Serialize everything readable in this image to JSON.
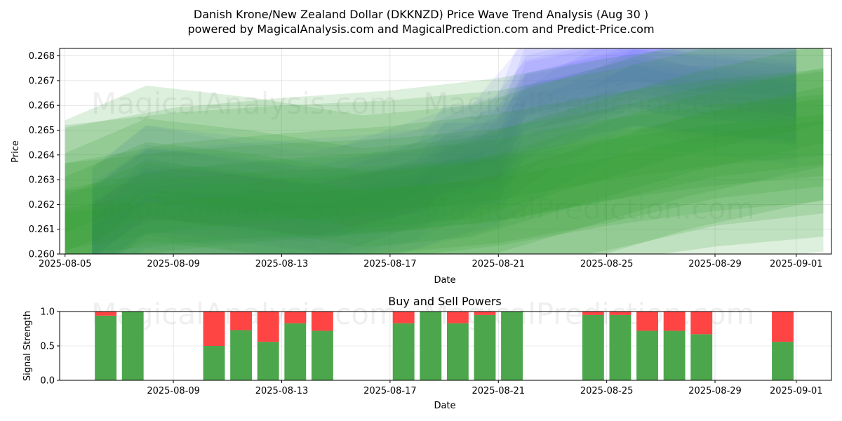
{
  "title_line1": "Danish Krone/New Zealand Dollar (DKKNZD) Price Wave Trend Analysis (Aug 30 )",
  "title_line2": "powered by MagicalAnalysis.com and MagicalPrediction.com and Predict-Price.com",
  "watermarks": [
    "MagicalAnalysis.com",
    "MagicalPrediction.com"
  ],
  "colors": {
    "blue": "#6666ff",
    "green": "#2e9e2e",
    "buy": "#4ca64c",
    "sell": "#ff4444"
  },
  "chart_data": [
    {
      "type": "area",
      "xlabel": "Date",
      "ylabel": "Price",
      "x_ticks": [
        "2025-08-05",
        "2025-08-09",
        "2025-08-13",
        "2025-08-17",
        "2025-08-21",
        "2025-08-25",
        "2025-08-29",
        "2025-09-01"
      ],
      "y_ticks": [
        "0.260",
        "0.261",
        "0.262",
        "0.263",
        "0.264",
        "0.265",
        "0.266",
        "0.267",
        "0.268"
      ],
      "xlim": [
        "2025-08-05",
        "2025-09-02"
      ],
      "ylim": [
        0.26,
        0.2683
      ],
      "grid": true,
      "series": [
        {
          "color": "blue",
          "x": [
            "2025-08-06",
            "2025-08-08",
            "2025-08-11",
            "2025-08-14",
            "2025-08-18",
            "2025-08-19",
            "2025-08-21",
            "2025-08-22",
            "2025-08-25",
            "2025-08-26",
            "2025-08-28",
            "2025-09-01"
          ],
          "values": [
            0.2607,
            0.2622,
            0.262,
            0.2615,
            0.2625,
            0.264,
            0.264,
            0.266,
            0.2668,
            0.2672,
            0.2668,
            0.2665
          ]
        },
        {
          "color": "blue",
          "x": [
            "2025-08-06",
            "2025-08-08",
            "2025-08-11",
            "2025-08-14",
            "2025-08-18",
            "2025-08-20",
            "2025-08-22",
            "2025-08-26",
            "2025-08-29",
            "2025-09-01"
          ],
          "values": [
            0.2612,
            0.263,
            0.2624,
            0.2619,
            0.2628,
            0.2638,
            0.2664,
            0.2674,
            0.267,
            0.2668
          ]
        },
        {
          "color": "blue",
          "x": [
            "2025-08-06",
            "2025-08-08",
            "2025-08-12",
            "2025-08-16",
            "2025-08-18",
            "2025-08-21",
            "2025-08-23",
            "2025-08-26",
            "2025-08-29",
            "2025-09-01"
          ],
          "values": [
            0.2605,
            0.2618,
            0.2621,
            0.2624,
            0.2626,
            0.2635,
            0.265,
            0.2667,
            0.2664,
            0.266
          ]
        },
        {
          "color": "blue",
          "x": [
            "2025-08-06",
            "2025-08-08",
            "2025-08-11",
            "2025-08-15",
            "2025-08-19",
            "2025-08-21",
            "2025-08-22",
            "2025-08-26",
            "2025-08-28",
            "2025-09-01"
          ],
          "values": [
            0.2609,
            0.2626,
            0.2622,
            0.2617,
            0.2632,
            0.2638,
            0.2667,
            0.2676,
            0.2671,
            0.267
          ]
        },
        {
          "color": "green",
          "x": [
            "2025-08-05",
            "2025-08-08",
            "2025-08-12",
            "2025-08-16",
            "2025-08-20",
            "2025-08-24",
            "2025-08-28",
            "2025-09-02"
          ],
          "values": [
            0.2616,
            0.263,
            0.2625,
            0.2618,
            0.2622,
            0.2635,
            0.2648,
            0.266
          ]
        },
        {
          "color": "green",
          "x": [
            "2025-08-05",
            "2025-08-09",
            "2025-08-13",
            "2025-08-17",
            "2025-08-21",
            "2025-08-25",
            "2025-08-29",
            "2025-09-02"
          ],
          "values": [
            0.261,
            0.2618,
            0.2622,
            0.2625,
            0.263,
            0.2638,
            0.2644,
            0.2648
          ]
        },
        {
          "color": "green",
          "x": [
            "2025-08-05",
            "2025-08-09",
            "2025-08-13",
            "2025-08-17",
            "2025-08-21",
            "2025-08-25",
            "2025-08-29",
            "2025-09-02"
          ],
          "values": [
            0.2608,
            0.2613,
            0.2616,
            0.2618,
            0.2622,
            0.263,
            0.264,
            0.2645
          ]
        }
      ]
    },
    {
      "type": "bar",
      "title": "Buy and Sell Powers",
      "xlabel": "Date",
      "ylabel": "Signal Strength",
      "x_ticks": [
        "2025-08-09",
        "2025-08-13",
        "2025-08-17",
        "2025-08-21",
        "2025-08-25",
        "2025-08-29",
        "2025-09-01"
      ],
      "y_ticks": [
        "0.0",
        "0.5",
        "1.0"
      ],
      "ylim": [
        0,
        1
      ],
      "dates": [
        "2025-08-06",
        "2025-08-07",
        "2025-08-10",
        "2025-08-11",
        "2025-08-12",
        "2025-08-13",
        "2025-08-14",
        "2025-08-17",
        "2025-08-18",
        "2025-08-19",
        "2025-08-20",
        "2025-08-21",
        "2025-08-24",
        "2025-08-25",
        "2025-08-26",
        "2025-08-27",
        "2025-08-28",
        "2025-08-31"
      ],
      "series": [
        {
          "name": "buy",
          "values": [
            0.94,
            1.0,
            0.5,
            0.73,
            0.56,
            0.83,
            0.72,
            0.83,
            1.0,
            0.83,
            0.95,
            1.0,
            0.95,
            0.95,
            0.72,
            0.72,
            0.67,
            0.56
          ]
        },
        {
          "name": "sell",
          "values": [
            0.06,
            0.0,
            0.5,
            0.27,
            0.44,
            0.17,
            0.28,
            0.17,
            0.0,
            0.17,
            0.05,
            0.0,
            0.05,
            0.05,
            0.28,
            0.28,
            0.33,
            0.44
          ]
        }
      ]
    }
  ]
}
